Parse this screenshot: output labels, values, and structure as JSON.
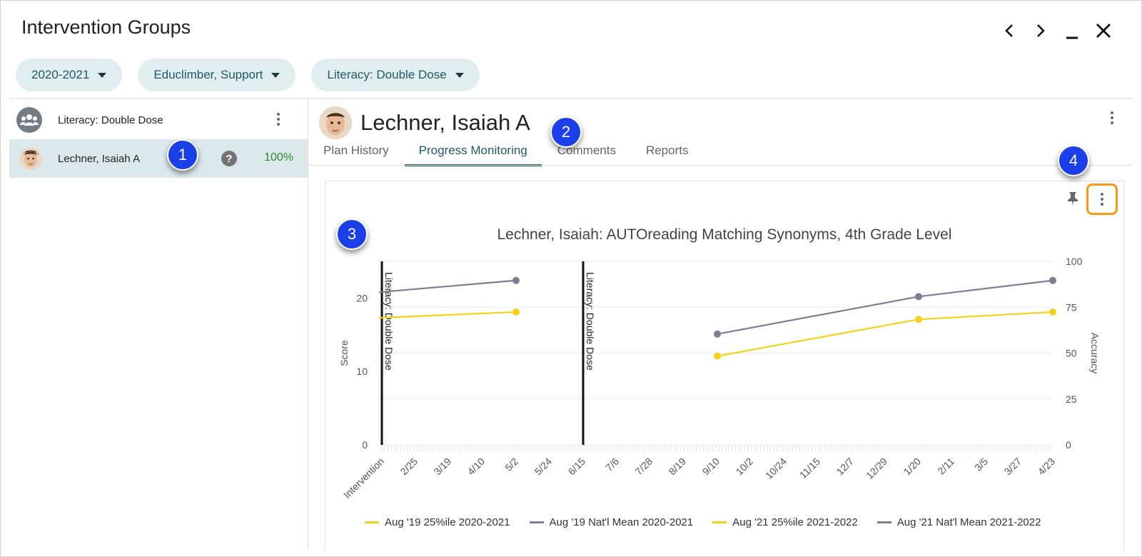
{
  "window": {
    "title": "Intervention Groups",
    "controls": [
      "prev-icon",
      "next-icon",
      "minimize-icon",
      "close-icon"
    ]
  },
  "filters": [
    {
      "label": "2020-2021"
    },
    {
      "label": "Educlimber, Support"
    },
    {
      "label": "Literacy: Double Dose"
    }
  ],
  "sidebar": {
    "group": {
      "label": "Literacy: Double Dose",
      "icon": "group-icon"
    },
    "students": [
      {
        "name": "Lechner, Isaiah A",
        "help_icon": "?",
        "percent": "100%"
      }
    ]
  },
  "main": {
    "student_name": "Lechner, Isaiah A",
    "tabs": [
      {
        "label": "Plan History",
        "active": false
      },
      {
        "label": "Progress Monitoring",
        "active": true
      },
      {
        "label": "Comments",
        "active": false
      },
      {
        "label": "Reports",
        "active": false
      }
    ]
  },
  "badges": [
    "1",
    "2",
    "3",
    "4"
  ],
  "colors": {
    "accent": "#1e5a63",
    "pill_bg": "#e1eef0",
    "selected_row": "#dbe9ec",
    "badge": "#1a3ee8",
    "highlight": "#f59a1b",
    "percentile_series": "#f5d21a",
    "mean_series": "#807c94"
  },
  "chart_data": {
    "type": "line",
    "title": "Lechner, Isaiah: AUTOreading Matching Synonyms, 4th Grade Level",
    "ylabel_left": "Score",
    "ylabel_right": "Accuracy",
    "yticks_left": [
      "0",
      "10",
      "20"
    ],
    "yticks_right": [
      "0",
      "25",
      "50",
      "75",
      "100"
    ],
    "ylim_left": [
      0,
      25
    ],
    "ylim_right": [
      0,
      100
    ],
    "x_categories": [
      "Intervention",
      "2/25",
      "3/19",
      "4/10",
      "5/2",
      "5/24",
      "6/15",
      "7/6",
      "7/28",
      "8/19",
      "9/10",
      "10/2",
      "10/24",
      "11/15",
      "12/7",
      "12/29",
      "1/20",
      "2/11",
      "3/5",
      "3/27",
      "4/23"
    ],
    "annotations": [
      {
        "label": "Literacy: Double Dose",
        "x": "Intervention"
      },
      {
        "label": "Literacy: Double Dose",
        "x": "6/15"
      }
    ],
    "series": [
      {
        "name": "Aug '19 25%ile 2020-2021",
        "color": "#f5d21a",
        "points": [
          {
            "x": "Intervention",
            "y": 17.3
          },
          {
            "x": "5/2",
            "y": 18.1
          }
        ]
      },
      {
        "name": "Aug '19 Nat'l Mean 2020-2021",
        "color": "#807c94",
        "points": [
          {
            "x": "Intervention",
            "y": 20.8
          },
          {
            "x": "5/2",
            "y": 22.4
          }
        ]
      },
      {
        "name": "Aug '21 25%ile 2021-2022",
        "color": "#f5d21a",
        "points": [
          {
            "x": "9/10",
            "y": 12.1
          },
          {
            "x": "1/20",
            "y": 17.1
          },
          {
            "x": "4/23",
            "y": 18.1
          }
        ]
      },
      {
        "name": "Aug '21 Nat'l Mean 2021-2022",
        "color": "#807c94",
        "points": [
          {
            "x": "9/10",
            "y": 15.1
          },
          {
            "x": "1/20",
            "y": 20.2
          },
          {
            "x": "4/23",
            "y": 22.4
          }
        ]
      }
    ],
    "legend_position": "bottom",
    "grid": true
  }
}
